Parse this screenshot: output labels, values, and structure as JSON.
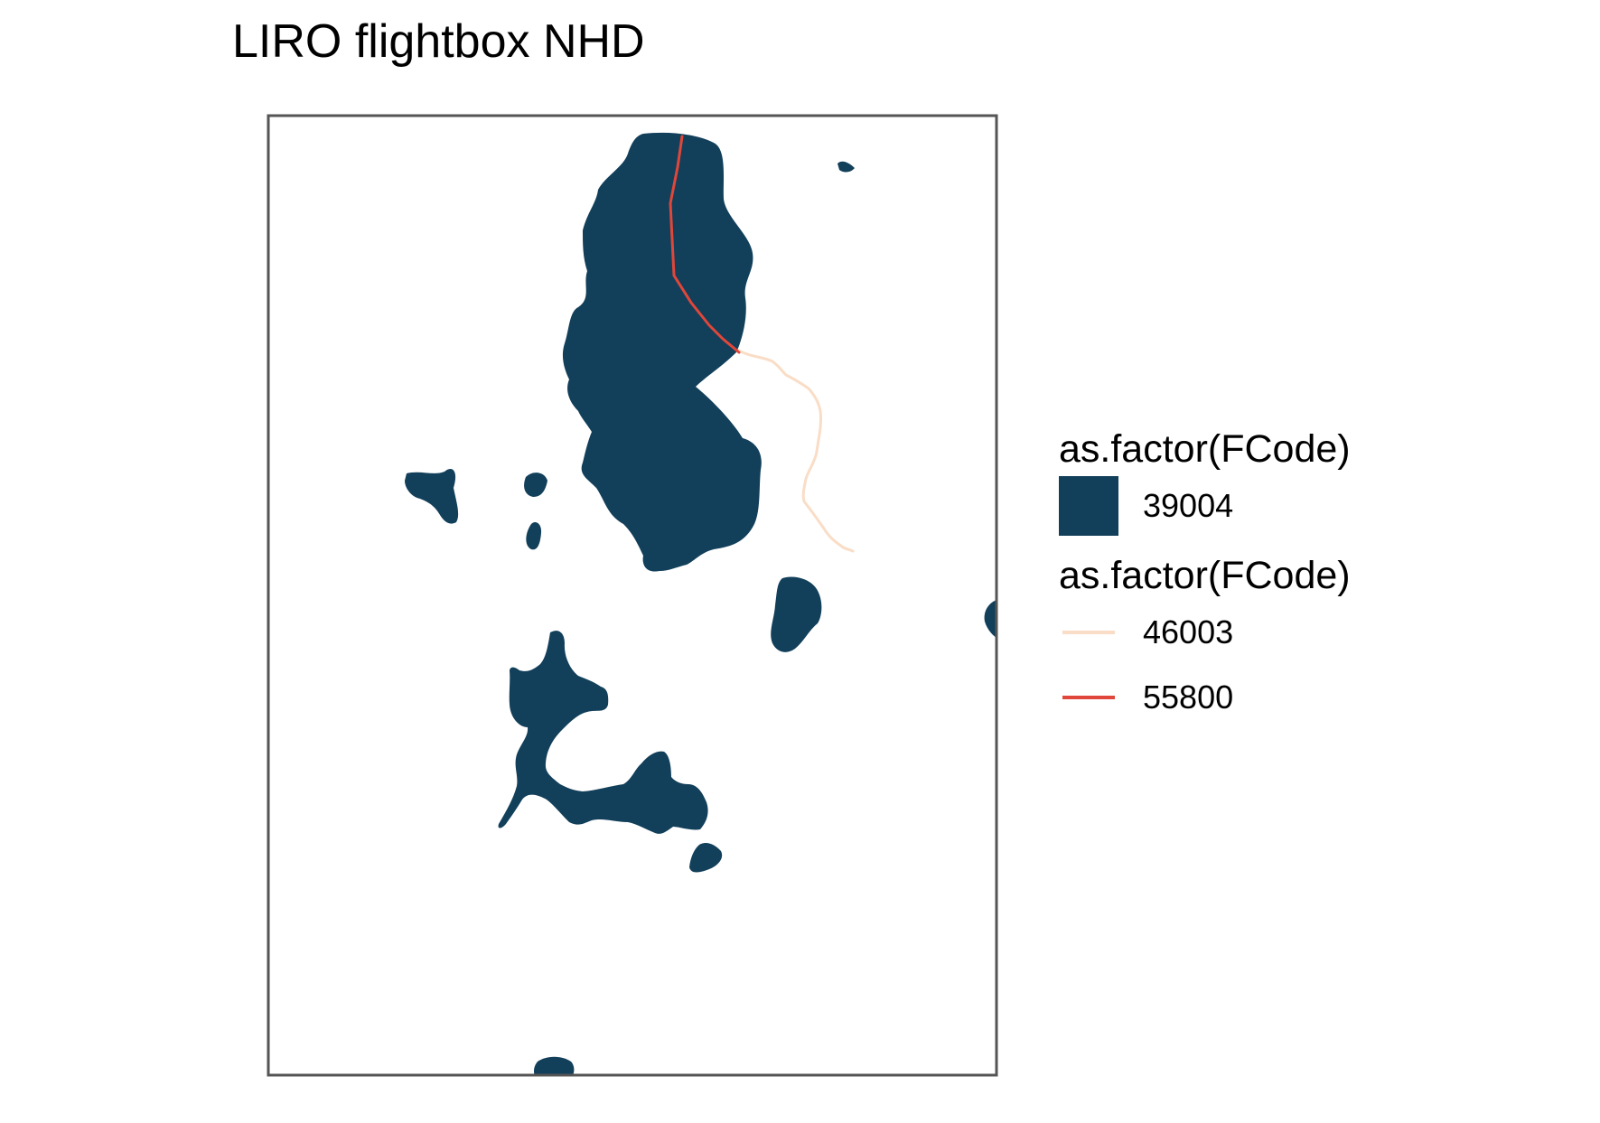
{
  "title": "LIRO flightbox NHD",
  "colors": {
    "waterbody": "#123f5a",
    "frame": "#555555",
    "flowline_46003": "#f9ddc6",
    "flowline_55800": "#e0473a"
  },
  "legend": {
    "fill_group": {
      "title": "as.factor(FCode)",
      "items": [
        {
          "label": "39004",
          "color": "#123f5a"
        }
      ]
    },
    "line_group": {
      "title": "as.factor(FCode)",
      "items": [
        {
          "label": "46003",
          "color": "#f9ddc6"
        },
        {
          "label": "55800",
          "color": "#e0473a"
        }
      ]
    }
  }
}
